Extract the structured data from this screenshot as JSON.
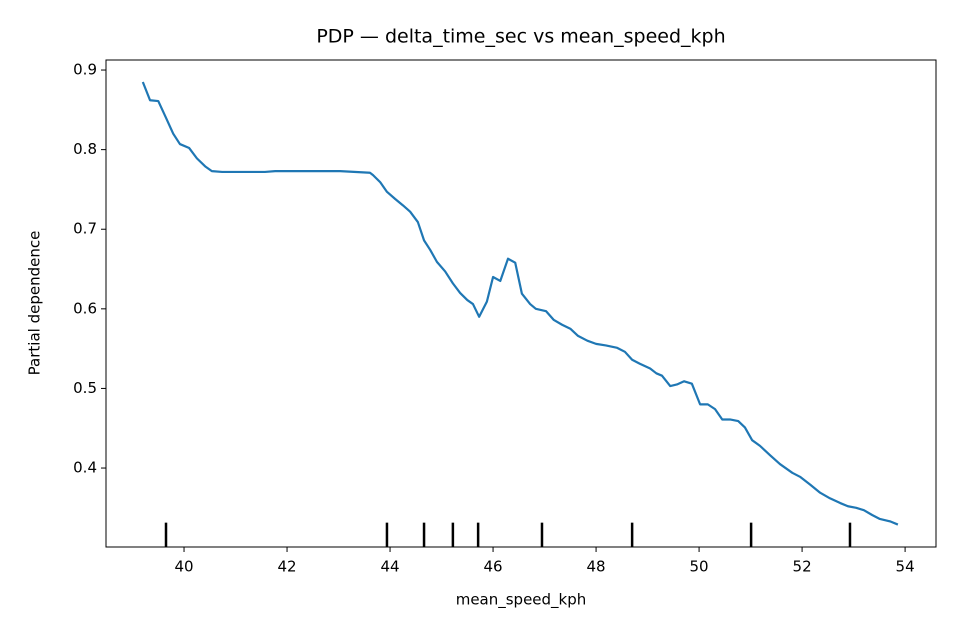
{
  "chart_data": {
    "type": "line",
    "title": "PDP — delta_time_sec vs mean_speed_kph",
    "x_label": "mean_speed_kph",
    "y_label": "Partial dependence",
    "color": "#1f77b4",
    "x": [
      39.2,
      39.34,
      39.5,
      39.65,
      39.79,
      39.92,
      40.1,
      40.25,
      40.41,
      40.54,
      40.74,
      41.57,
      41.77,
      42.83,
      43.03,
      43.61,
      43.67,
      43.81,
      43.94,
      44.1,
      44.25,
      44.39,
      44.54,
      44.66,
      44.78,
      44.91,
      45.07,
      45.22,
      45.36,
      45.5,
      45.61,
      45.73,
      45.88,
      46.0,
      46.14,
      46.29,
      46.43,
      46.56,
      46.72,
      46.83,
      47.03,
      47.18,
      47.34,
      47.5,
      47.65,
      47.83,
      48.0,
      48.19,
      48.41,
      48.56,
      48.7,
      48.85,
      49.05,
      49.17,
      49.28,
      49.44,
      49.57,
      49.71,
      49.86,
      50.02,
      50.17,
      50.31,
      50.45,
      50.6,
      50.76,
      50.89,
      51.03,
      51.18,
      51.38,
      51.57,
      51.81,
      51.96,
      52.16,
      52.35,
      52.54,
      52.74,
      52.89,
      53.05,
      53.2,
      53.36,
      53.51,
      53.71,
      53.86
    ],
    "values": [
      0.885,
      0.862,
      0.861,
      0.84,
      0.82,
      0.807,
      0.802,
      0.789,
      0.779,
      0.773,
      0.772,
      0.772,
      0.773,
      0.773,
      0.773,
      0.771,
      0.768,
      0.759,
      0.747,
      0.738,
      0.73,
      0.722,
      0.709,
      0.686,
      0.674,
      0.659,
      0.647,
      0.632,
      0.62,
      0.611,
      0.606,
      0.59,
      0.609,
      0.64,
      0.635,
      0.663,
      0.658,
      0.619,
      0.606,
      0.6,
      0.597,
      0.586,
      0.58,
      0.575,
      0.566,
      0.56,
      0.556,
      0.554,
      0.551,
      0.546,
      0.536,
      0.531,
      0.525,
      0.519,
      0.516,
      0.503,
      0.505,
      0.509,
      0.506,
      0.48,
      0.48,
      0.474,
      0.461,
      0.461,
      0.459,
      0.451,
      0.435,
      0.428,
      0.416,
      0.405,
      0.394,
      0.389,
      0.379,
      0.369,
      0.362,
      0.356,
      0.352,
      0.35,
      0.347,
      0.341,
      0.336,
      0.333,
      0.329
    ],
    "deciles": [
      39.65,
      43.94,
      44.66,
      45.22,
      45.71,
      46.95,
      48.7,
      51.01,
      52.93
    ],
    "xlim": [
      38.485,
      54.6
    ],
    "ylim": [
      0.3008,
      0.9126
    ],
    "xticks": [
      40,
      42,
      44,
      46,
      48,
      50,
      52,
      54
    ],
    "yticks": [
      0.4,
      0.5,
      0.6,
      0.7,
      0.8,
      0.9
    ]
  }
}
